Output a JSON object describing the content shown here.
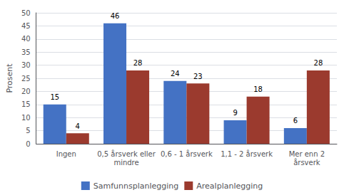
{
  "chart_data": {
    "type": "bar",
    "categories": [
      "Ingen",
      "0,5 årsverk eller\nmindre",
      "0,6 - 1 årsverk",
      "1,1 - 2 årsverk",
      "Mer enn 2\nårsverk"
    ],
    "series": [
      {
        "name": "Samfunnsplanlegging",
        "color": "#4472C4",
        "values": [
          15,
          46,
          24,
          9,
          6
        ]
      },
      {
        "name": "Arealplanlegging",
        "color": "#9B3A2E",
        "values": [
          4,
          28,
          23,
          18,
          28
        ]
      }
    ],
    "ylabel": "Prosent",
    "ylim": [
      0,
      50
    ],
    "yticks": [
      0,
      5,
      10,
      15,
      20,
      25,
      30,
      35,
      40,
      45,
      50
    ],
    "grid": true,
    "legend": "bottom",
    "data_labels": true
  }
}
